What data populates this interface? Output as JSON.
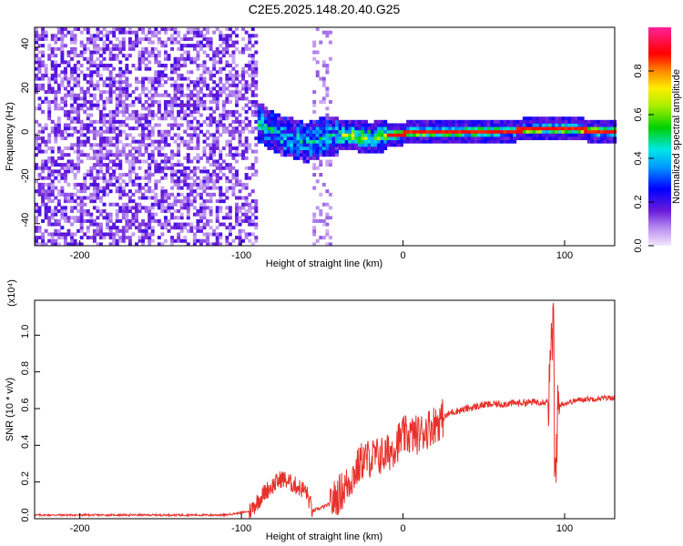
{
  "figure": {
    "title": "C2E5.2025.148.20.40.G25"
  },
  "colors": {
    "snr_line": "#e8302a",
    "axis": "#000000"
  },
  "chart_data": [
    {
      "type": "heatmap",
      "title": "",
      "xlabel": "Height of straight line (km)",
      "ylabel": "Frequency (Hz)",
      "xlim": [
        -228,
        131
      ],
      "ylim": [
        -50,
        49
      ],
      "xticks": [
        -200,
        -100,
        0,
        100
      ],
      "yticks": [
        -40,
        -20,
        0,
        20,
        40
      ],
      "colorbar": {
        "label": "Normalized spectral amplitude",
        "range": [
          0,
          1
        ],
        "ticks": [
          0.0,
          0.2,
          0.4,
          0.6,
          0.8
        ],
        "colormap": "rainbow (violet-blue-cyan-green-yellow-orange-red-magenta)"
      },
      "features": {
        "noise_region_x": [
          -228,
          -90
        ],
        "noise_level": 0.15,
        "gap_x": [
          -85,
          -55
        ],
        "secondary_noise_x": [
          -55,
          -45
        ],
        "signal_onset_x": -90,
        "signal_center_freq_hz": [
          {
            "x": -90,
            "y": 6
          },
          {
            "x": -75,
            "y": 0
          },
          {
            "x": -60,
            "y": -3
          },
          {
            "x": -45,
            "y": 0
          },
          {
            "x": -30,
            "y": 0
          },
          {
            "x": -20,
            "y": -1
          },
          {
            "x": 0,
            "y": 1
          },
          {
            "x": 50,
            "y": 2
          },
          {
            "x": 95,
            "y": 3
          },
          {
            "x": 131,
            "y": 2
          }
        ],
        "signal_peak_amplitude": 0.85
      }
    },
    {
      "type": "line",
      "title": "",
      "xlabel": "Height of straight line (km)",
      "ylabel": "SNR (10 * v/v)",
      "y_multiplier": "(x10⁴)",
      "xlim": [
        -228,
        131
      ],
      "ylim": [
        0,
        1.19
      ],
      "xticks": [
        -200,
        -100,
        0,
        100
      ],
      "yticks": [
        0.0,
        0.2,
        0.4,
        0.6,
        0.8,
        1.0
      ],
      "series": [
        {
          "points": [
            {
              "x": -228,
              "y": 0.02
            },
            {
              "x": -180,
              "y": 0.02
            },
            {
              "x": -130,
              "y": 0.02
            },
            {
              "x": -110,
              "y": 0.02
            },
            {
              "x": -95,
              "y": 0.04
            },
            {
              "x": -85,
              "y": 0.15
            },
            {
              "x": -75,
              "y": 0.22
            },
            {
              "x": -60,
              "y": 0.15
            },
            {
              "x": -56,
              "y": 0.04
            },
            {
              "x": -45,
              "y": 0.08
            },
            {
              "x": -35,
              "y": 0.18
            },
            {
              "x": -25,
              "y": 0.32
            },
            {
              "x": -10,
              "y": 0.35
            },
            {
              "x": 0,
              "y": 0.45
            },
            {
              "x": 10,
              "y": 0.46
            },
            {
              "x": 20,
              "y": 0.52
            },
            {
              "x": 30,
              "y": 0.58
            },
            {
              "x": 50,
              "y": 0.62
            },
            {
              "x": 70,
              "y": 0.63
            },
            {
              "x": 90,
              "y": 0.64
            },
            {
              "x": 93,
              "y": 1.1
            },
            {
              "x": 94,
              "y": 0.2
            },
            {
              "x": 96,
              "y": 0.62
            },
            {
              "x": 110,
              "y": 0.65
            },
            {
              "x": 131,
              "y": 0.66
            }
          ]
        }
      ]
    }
  ]
}
